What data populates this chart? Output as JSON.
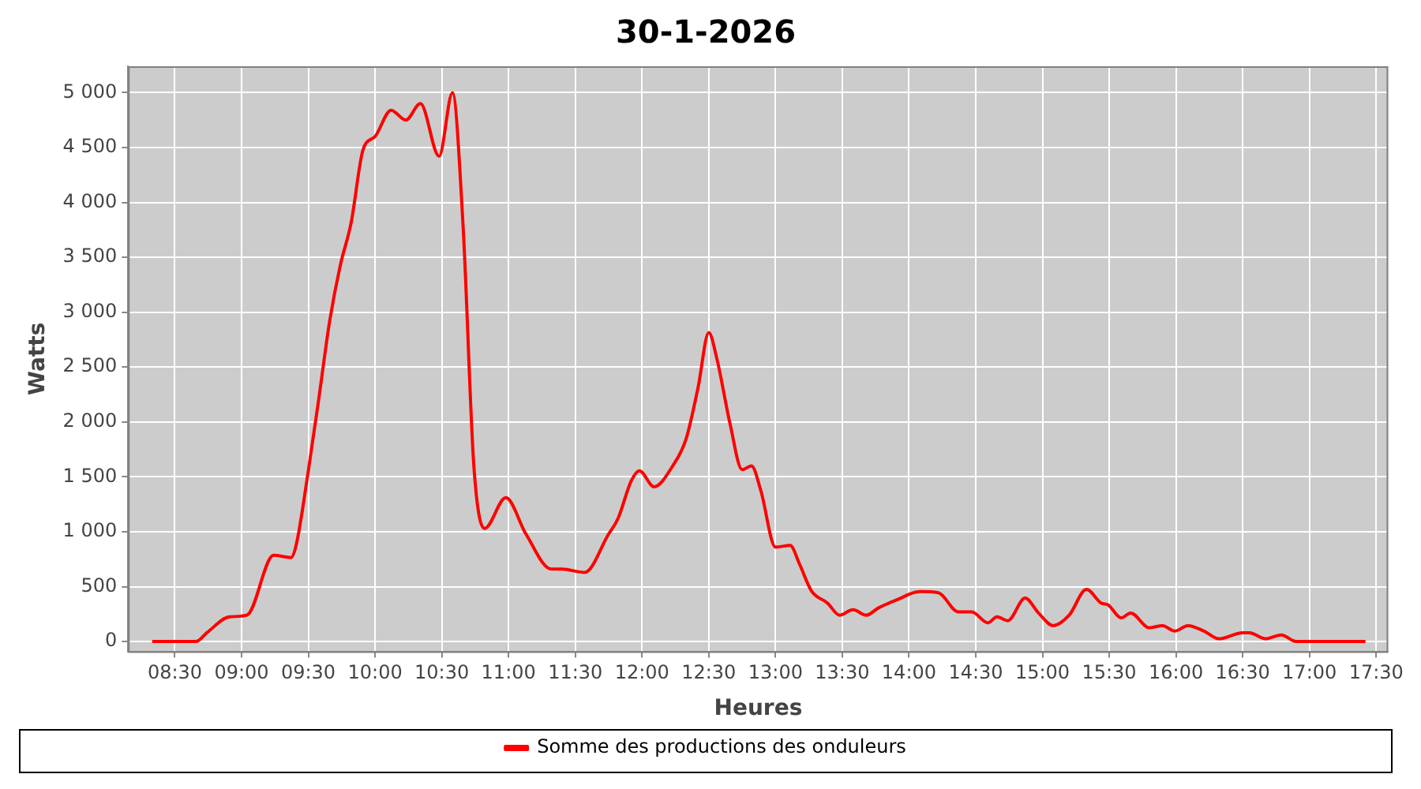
{
  "chart_data": {
    "type": "line",
    "title": "30-1-2026",
    "xlabel": "Heures",
    "ylabel": "Watts",
    "x": [
      8.33,
      8.66,
      8.74,
      8.91,
      9.04,
      9.24,
      9.37,
      9.41,
      9.5,
      9.58,
      9.66,
      9.74,
      9.82,
      9.91,
      10.0,
      10.12,
      10.23,
      10.34,
      10.48,
      10.58,
      10.66,
      10.74,
      10.82,
      10.98,
      11.13,
      11.32,
      11.4,
      11.57,
      11.75,
      11.82,
      11.92,
      11.98,
      12.09,
      12.23,
      12.33,
      12.42,
      12.5,
      12.56,
      12.66,
      12.75,
      12.82,
      12.89,
      13.0,
      13.11,
      13.18,
      13.27,
      13.39,
      13.48,
      13.58,
      13.68,
      13.77,
      13.91,
      14.08,
      14.22,
      14.37,
      14.47,
      14.59,
      14.66,
      14.74,
      14.87,
      14.97,
      15.08,
      15.2,
      15.33,
      15.44,
      15.49,
      15.59,
      15.66,
      15.8,
      15.9,
      15.99,
      16.09,
      16.21,
      16.32,
      16.5,
      16.55,
      16.67,
      16.79,
      16.9,
      17.42
    ],
    "series": [
      {
        "name": "Somme des productions des onduleurs",
        "color": "#ff0000",
        "values": [
          0,
          0,
          80,
          225,
          240,
          785,
          765,
          885,
          1555,
          2225,
          2920,
          3430,
          3810,
          4480,
          4600,
          4840,
          4750,
          4900,
          4420,
          5000,
          3770,
          1600,
          1030,
          1310,
          980,
          660,
          660,
          630,
          980,
          1120,
          1465,
          1555,
          1410,
          1600,
          1845,
          2315,
          2815,
          2580,
          1980,
          1565,
          1600,
          1375,
          860,
          875,
          705,
          460,
          350,
          240,
          290,
          240,
          305,
          380,
          455,
          445,
          270,
          270,
          170,
          225,
          190,
          395,
          260,
          145,
          240,
          475,
          350,
          335,
          215,
          260,
          125,
          145,
          95,
          145,
          95,
          25,
          80,
          80,
          25,
          60,
          0,
          0
        ]
      }
    ],
    "xlim": [
      8.15,
      17.59
    ],
    "xticks": [
      {
        "value": 8.5,
        "label": "08:30"
      },
      {
        "value": 9,
        "label": "09:00"
      },
      {
        "value": 9.5,
        "label": "09:30"
      },
      {
        "value": 10,
        "label": "10:00"
      },
      {
        "value": 10.5,
        "label": "10:30"
      },
      {
        "value": 11,
        "label": "11:00"
      },
      {
        "value": 11.5,
        "label": "11:30"
      },
      {
        "value": 12,
        "label": "12:00"
      },
      {
        "value": 12.5,
        "label": "12:30"
      },
      {
        "value": 13,
        "label": "13:00"
      },
      {
        "value": 13.5,
        "label": "13:30"
      },
      {
        "value": 14,
        "label": "14:00"
      },
      {
        "value": 14.5,
        "label": "14:30"
      },
      {
        "value": 15,
        "label": "15:00"
      },
      {
        "value": 15.5,
        "label": "15:30"
      },
      {
        "value": 16,
        "label": "16:00"
      },
      {
        "value": 16.5,
        "label": "16:30"
      },
      {
        "value": 17,
        "label": "17:00"
      },
      {
        "value": 17.5,
        "label": "17:30"
      }
    ],
    "ylim": [
      -90,
      5240
    ],
    "yticks": [
      0,
      500,
      {
        "value": 1000,
        "label": "1 000"
      },
      {
        "value": 1500,
        "label": "1 500"
      },
      {
        "value": 2000,
        "label": "2 000"
      },
      {
        "value": 2500,
        "label": "2 500"
      },
      {
        "value": 3000,
        "label": "3 000"
      },
      {
        "value": 3500,
        "label": "3 500"
      },
      {
        "value": 4000,
        "label": "4 000"
      },
      {
        "value": 4500,
        "label": "4 500"
      },
      {
        "value": 5000,
        "label": "5 000"
      }
    ],
    "grid": true,
    "legend": "bottom",
    "line_style": "solid"
  }
}
